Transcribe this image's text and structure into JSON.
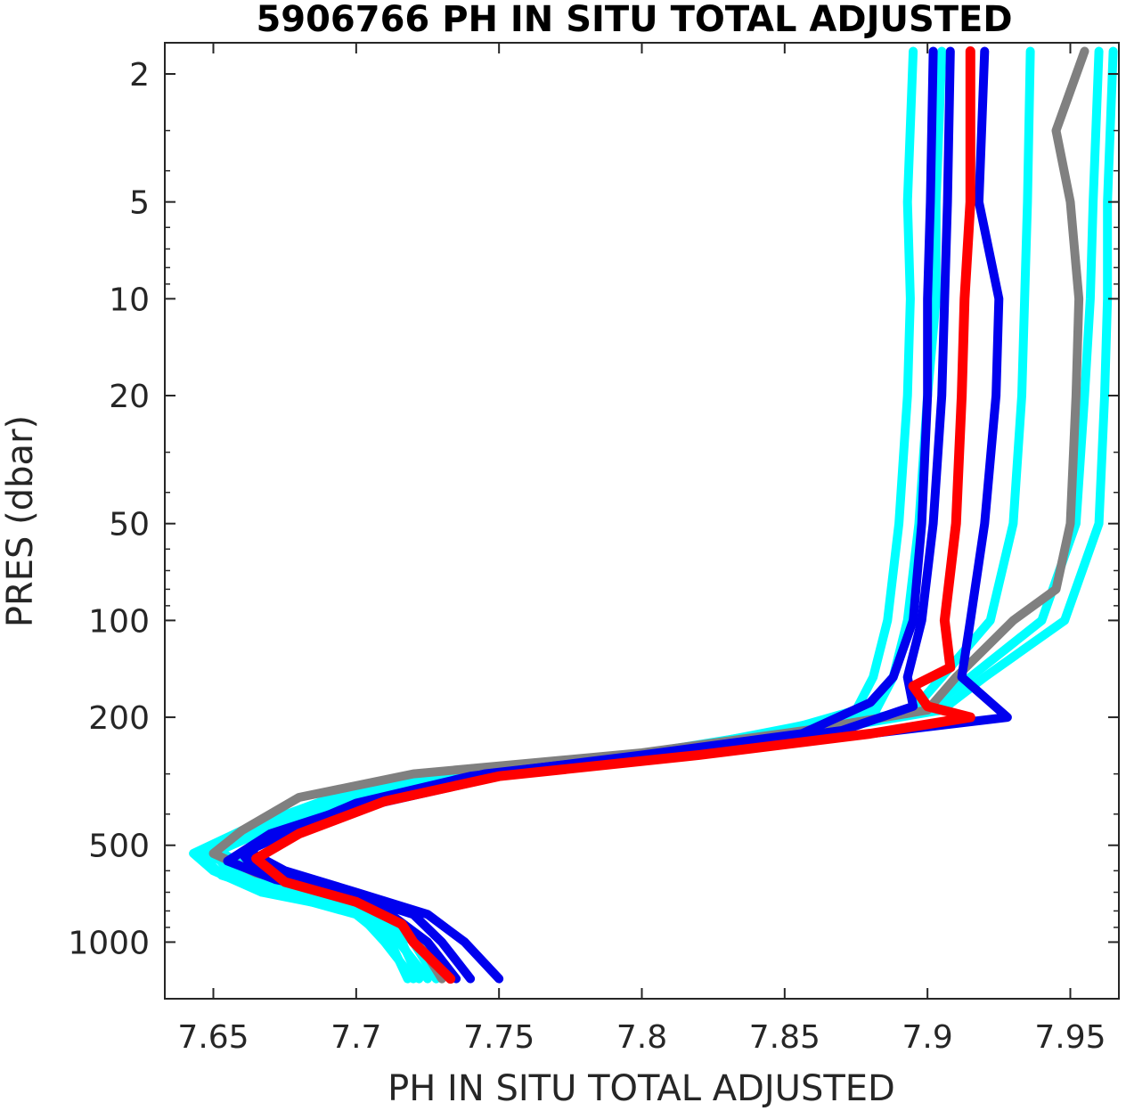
{
  "chart_data": {
    "type": "line",
    "title": "5906766  PH IN SITU TOTAL ADJUSTED",
    "xlabel": "PH IN SITU TOTAL ADJUSTED",
    "ylabel": "PRES (dbar)",
    "xlim": [
      7.633,
      7.967
    ],
    "ylim": [
      1.6,
      1500
    ],
    "yscale": "log",
    "yreversed": true,
    "x_ticks": [
      7.65,
      7.7,
      7.75,
      7.8,
      7.85,
      7.9,
      7.95
    ],
    "x_tick_labels": [
      "7.65",
      "7.7",
      "7.75",
      "7.8",
      "7.85",
      "7.9",
      "7.95"
    ],
    "y_ticks": [
      2,
      5,
      10,
      20,
      50,
      100,
      200,
      500,
      1000
    ],
    "y_tick_labels": [
      "2",
      "5",
      "10",
      "20",
      "50",
      "100",
      "200",
      "500",
      "1000"
    ],
    "grid": false,
    "series_colors": {
      "cyan": "#00FFFF",
      "gray": "#808080",
      "blue": "#0000EE",
      "red": "#FF0000"
    },
    "series": [
      {
        "color": "cyan",
        "values": [
          [
            7.895,
            1.7
          ],
          [
            7.893,
            5
          ],
          [
            7.894,
            10
          ],
          [
            7.893,
            20
          ],
          [
            7.89,
            50
          ],
          [
            7.886,
            100
          ],
          [
            7.881,
            150
          ],
          [
            7.875,
            190
          ],
          [
            7.85,
            220
          ],
          [
            7.8,
            260
          ],
          [
            7.73,
            300
          ],
          [
            7.69,
            360
          ],
          [
            7.66,
            450
          ],
          [
            7.643,
            530
          ],
          [
            7.65,
            600
          ],
          [
            7.667,
            700
          ],
          [
            7.7,
            800
          ],
          [
            7.71,
            1000
          ],
          [
            7.72,
            1300
          ]
        ]
      },
      {
        "color": "cyan",
        "values": [
          [
            7.905,
            1.7
          ],
          [
            7.903,
            5
          ],
          [
            7.903,
            10
          ],
          [
            7.9,
            20
          ],
          [
            7.897,
            50
          ],
          [
            7.893,
            100
          ],
          [
            7.888,
            150
          ],
          [
            7.882,
            190
          ],
          [
            7.853,
            215
          ],
          [
            7.81,
            255
          ],
          [
            7.74,
            300
          ],
          [
            7.7,
            360
          ],
          [
            7.668,
            450
          ],
          [
            7.65,
            520
          ],
          [
            7.655,
            600
          ],
          [
            7.675,
            700
          ],
          [
            7.706,
            800
          ],
          [
            7.715,
            1000
          ],
          [
            7.725,
            1300
          ]
        ]
      },
      {
        "color": "cyan",
        "values": [
          [
            7.936,
            1.7
          ],
          [
            7.935,
            5
          ],
          [
            7.934,
            10
          ],
          [
            7.933,
            20
          ],
          [
            7.93,
            50
          ],
          [
            7.922,
            100
          ],
          [
            7.905,
            150
          ],
          [
            7.895,
            190
          ],
          [
            7.86,
            220
          ],
          [
            7.8,
            260
          ],
          [
            7.73,
            305
          ],
          [
            7.69,
            370
          ],
          [
            7.662,
            460
          ],
          [
            7.646,
            540
          ],
          [
            7.653,
            620
          ],
          [
            7.672,
            700
          ],
          [
            7.7,
            820
          ],
          [
            7.712,
            1000
          ],
          [
            7.718,
            1300
          ]
        ]
      },
      {
        "color": "cyan",
        "values": [
          [
            7.96,
            1.7
          ],
          [
            7.958,
            5
          ],
          [
            7.957,
            10
          ],
          [
            7.955,
            20
          ],
          [
            7.952,
            50
          ],
          [
            7.94,
            100
          ],
          [
            7.915,
            150
          ],
          [
            7.9,
            190
          ],
          [
            7.86,
            215
          ],
          [
            7.81,
            258
          ],
          [
            7.74,
            300
          ],
          [
            7.7,
            365
          ],
          [
            7.665,
            455
          ],
          [
            7.648,
            530
          ],
          [
            7.66,
            610
          ],
          [
            7.68,
            700
          ],
          [
            7.705,
            820
          ],
          [
            7.716,
            1000
          ],
          [
            7.722,
            1300
          ]
        ]
      },
      {
        "color": "cyan",
        "values": [
          [
            7.965,
            1.7
          ],
          [
            7.963,
            5
          ],
          [
            7.963,
            10
          ],
          [
            7.962,
            20
          ],
          [
            7.96,
            50
          ],
          [
            7.948,
            100
          ],
          [
            7.92,
            150
          ],
          [
            7.905,
            190
          ],
          [
            7.865,
            218
          ],
          [
            7.82,
            256
          ],
          [
            7.75,
            300
          ],
          [
            7.705,
            360
          ],
          [
            7.668,
            450
          ],
          [
            7.652,
            520
          ],
          [
            7.663,
            600
          ],
          [
            7.683,
            700
          ],
          [
            7.708,
            820
          ],
          [
            7.72,
            1000
          ],
          [
            7.728,
            1300
          ]
        ]
      },
      {
        "color": "gray",
        "values": [
          [
            7.955,
            1.7
          ],
          [
            7.945,
            3
          ],
          [
            7.95,
            5
          ],
          [
            7.953,
            10
          ],
          [
            7.952,
            20
          ],
          [
            7.95,
            50
          ],
          [
            7.945,
            80
          ],
          [
            7.93,
            100
          ],
          [
            7.91,
            150
          ],
          [
            7.9,
            190
          ],
          [
            7.86,
            218
          ],
          [
            7.8,
            258
          ],
          [
            7.72,
            300
          ],
          [
            7.68,
            355
          ],
          [
            7.66,
            450
          ],
          [
            7.65,
            530
          ],
          [
            7.665,
            610
          ],
          [
            7.69,
            700
          ],
          [
            7.712,
            820
          ],
          [
            7.722,
            1000
          ],
          [
            7.73,
            1300
          ]
        ]
      },
      {
        "color": "blue",
        "values": [
          [
            7.902,
            1.7
          ],
          [
            7.901,
            5
          ],
          [
            7.9,
            10
          ],
          [
            7.9,
            20
          ],
          [
            7.898,
            50
          ],
          [
            7.895,
            100
          ],
          [
            7.888,
            150
          ],
          [
            7.88,
            180
          ],
          [
            7.856,
            225
          ],
          [
            7.8,
            262
          ],
          [
            7.74,
            305
          ],
          [
            7.7,
            370
          ],
          [
            7.675,
            460
          ],
          [
            7.66,
            530
          ],
          [
            7.665,
            600
          ],
          [
            7.69,
            700
          ],
          [
            7.712,
            820
          ],
          [
            7.725,
            1000
          ],
          [
            7.735,
            1300
          ]
        ]
      },
      {
        "color": "blue",
        "values": [
          [
            7.908,
            1.7
          ],
          [
            7.907,
            5
          ],
          [
            7.906,
            10
          ],
          [
            7.905,
            20
          ],
          [
            7.902,
            50
          ],
          [
            7.898,
            100
          ],
          [
            7.893,
            150
          ],
          [
            7.895,
            185
          ],
          [
            7.87,
            220
          ],
          [
            7.81,
            258
          ],
          [
            7.745,
            300
          ],
          [
            7.705,
            365
          ],
          [
            7.67,
            460
          ],
          [
            7.655,
            560
          ],
          [
            7.672,
            640
          ],
          [
            7.7,
            720
          ],
          [
            7.72,
            820
          ],
          [
            7.73,
            1000
          ],
          [
            7.74,
            1300
          ]
        ]
      },
      {
        "color": "blue",
        "values": [
          [
            7.92,
            1.7
          ],
          [
            7.918,
            5
          ],
          [
            7.925,
            10
          ],
          [
            7.924,
            20
          ],
          [
            7.92,
            50
          ],
          [
            7.915,
            100
          ],
          [
            7.912,
            150
          ],
          [
            7.928,
            200
          ],
          [
            7.88,
            225
          ],
          [
            7.82,
            260
          ],
          [
            7.75,
            305
          ],
          [
            7.708,
            370
          ],
          [
            7.675,
            450
          ],
          [
            7.662,
            520
          ],
          [
            7.675,
            600
          ],
          [
            7.7,
            700
          ],
          [
            7.725,
            820
          ],
          [
            7.738,
            1000
          ],
          [
            7.75,
            1300
          ]
        ]
      },
      {
        "color": "red",
        "values": [
          [
            7.915,
            1.7
          ],
          [
            7.915,
            5
          ],
          [
            7.913,
            10
          ],
          [
            7.912,
            20
          ],
          [
            7.91,
            50
          ],
          [
            7.906,
            100
          ],
          [
            7.908,
            140
          ],
          [
            7.895,
            160
          ],
          [
            7.9,
            185
          ],
          [
            7.915,
            200
          ],
          [
            7.88,
            225
          ],
          [
            7.82,
            262
          ],
          [
            7.75,
            305
          ],
          [
            7.71,
            365
          ],
          [
            7.68,
            460
          ],
          [
            7.665,
            550
          ],
          [
            7.675,
            650
          ],
          [
            7.7,
            750
          ],
          [
            7.716,
            880
          ],
          [
            7.72,
            1000
          ],
          [
            7.733,
            1300
          ]
        ]
      }
    ]
  }
}
